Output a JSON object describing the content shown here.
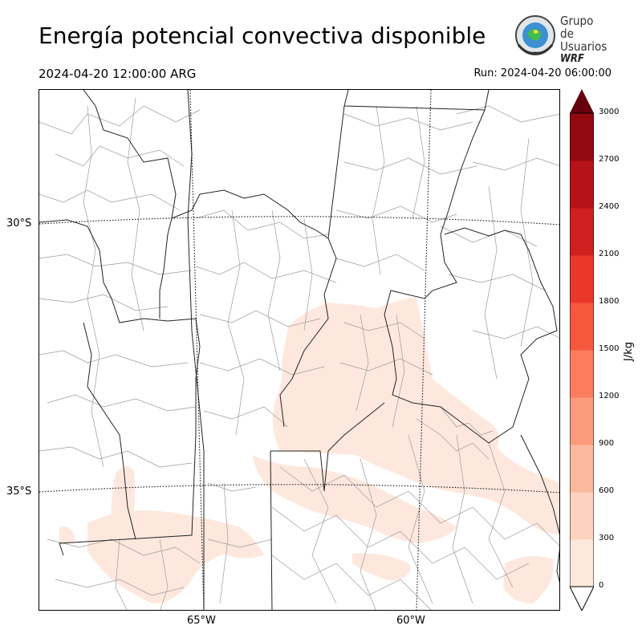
{
  "header": {
    "title": "Energía potencial convectiva disponible",
    "valid_time": "2024-04-20 12:00:00 ARG",
    "run_time": "Run: 2024-04-20 06:00:00"
  },
  "logo": {
    "line1": "Grupo de",
    "line2": "Usuarios",
    "line3": "WRF"
  },
  "map": {
    "lat_labels": [
      "30°S",
      "35°S"
    ],
    "lon_labels": [
      "65°W",
      "60°W"
    ],
    "field": "CAPE"
  },
  "colorbar": {
    "units": "J/kg",
    "levels": [
      0,
      300,
      600,
      900,
      1200,
      1500,
      1800,
      2100,
      2400,
      2700,
      3000
    ],
    "tick_labels": [
      "0",
      "300",
      "600",
      "900",
      "1200",
      "1500",
      "1800",
      "2100",
      "2400",
      "2700",
      "3000"
    ],
    "colors": [
      "#fee8de",
      "#fdd2c0",
      "#fcb89d",
      "#fc9b7b",
      "#fb7d5d",
      "#f6583e",
      "#eb372a",
      "#d11f20",
      "#b61319",
      "#94090f"
    ],
    "over_color": "#67000d",
    "under_color": "#ffffff"
  }
}
